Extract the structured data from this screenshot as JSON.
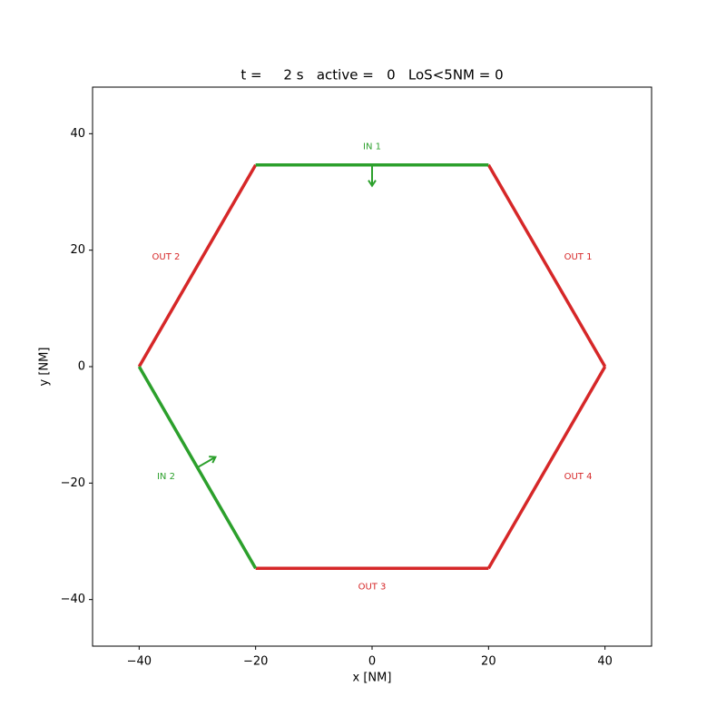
{
  "chart_data": {
    "type": "line",
    "title": "t =     2 s   active =   0   LoS<5NM = 0",
    "xlabel": "x [NM]",
    "ylabel": "y [NM]",
    "xlim": [
      -48,
      48
    ],
    "ylim": [
      -48,
      48
    ],
    "xticks": [
      {
        "value": -40,
        "label": "−40"
      },
      {
        "value": -20,
        "label": "−20"
      },
      0,
      20,
      40
    ],
    "yticks": [
      {
        "value": -40,
        "label": "−40"
      },
      {
        "value": -20,
        "label": "−20"
      },
      0,
      20,
      40
    ],
    "grid": false,
    "series": [
      {
        "name": "OUT 1",
        "color": "#d62728",
        "x": [
          40,
          20
        ],
        "y": [
          0,
          34.64
        ]
      },
      {
        "name": "OUT 2",
        "color": "#d62728",
        "x": [
          -20,
          -40
        ],
        "y": [
          34.64,
          0
        ]
      },
      {
        "name": "OUT 3",
        "color": "#d62728",
        "x": [
          -20,
          20
        ],
        "y": [
          -34.64,
          -34.64
        ]
      },
      {
        "name": "OUT 4",
        "color": "#d62728",
        "x": [
          20,
          40
        ],
        "y": [
          -34.64,
          0
        ]
      },
      {
        "name": "IN 1",
        "color": "#2ca02c",
        "x": [
          20,
          -20
        ],
        "y": [
          34.64,
          34.64
        ]
      },
      {
        "name": "IN 2",
        "color": "#2ca02c",
        "x": [
          -40,
          -20
        ],
        "y": [
          0,
          -34.64
        ]
      }
    ]
  }
}
